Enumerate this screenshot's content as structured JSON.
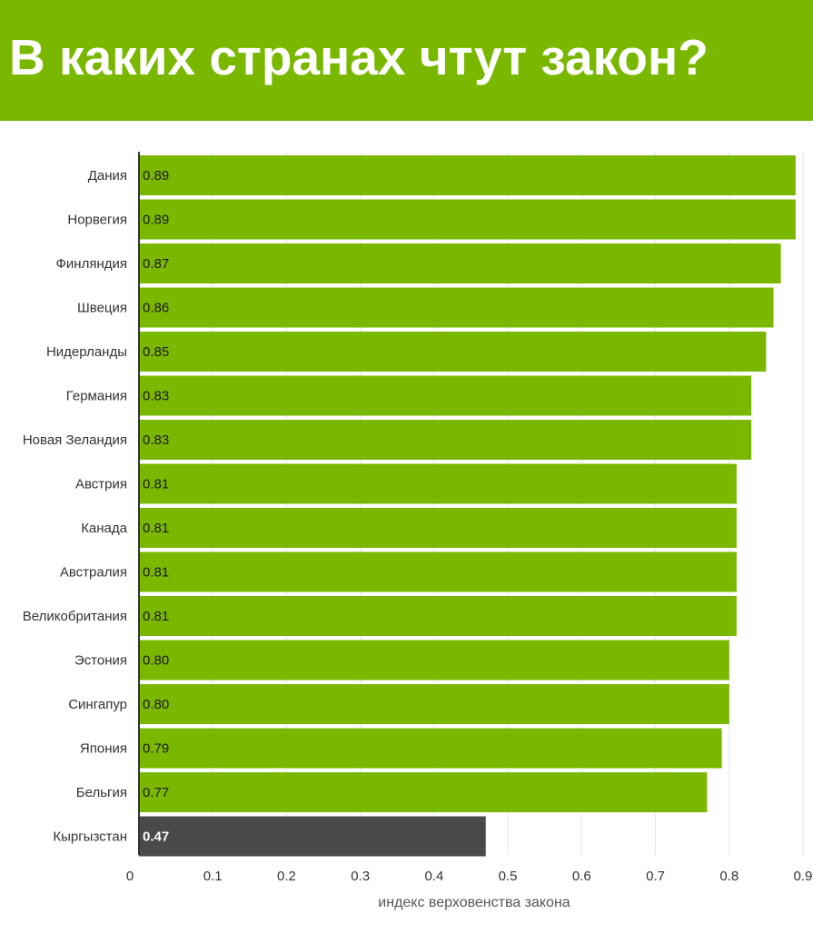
{
  "header": {
    "title": "В каких странах чтут закон?"
  },
  "colors": {
    "header_bg": "#7ab800",
    "bar": "#7ab800",
    "bar_highlight": "#4a4a4a"
  },
  "chart_data": {
    "type": "bar",
    "orientation": "horizontal",
    "categories": [
      "Дания",
      "Норвегия",
      "Финляндия",
      "Швеция",
      "Нидерланды",
      "Германия",
      "Новая Зеландия",
      "Австрия",
      "Канада",
      "Австралия",
      "Великобритания",
      "Эстония",
      "Сингапур",
      "Япония",
      "Бельгия",
      "Кыргызстан"
    ],
    "values": [
      0.89,
      0.89,
      0.87,
      0.86,
      0.85,
      0.83,
      0.83,
      0.81,
      0.81,
      0.81,
      0.81,
      0.8,
      0.8,
      0.79,
      0.77,
      0.47
    ],
    "value_labels": [
      "0.89",
      "0.89",
      "0.87",
      "0.86",
      "0.85",
      "0.83",
      "0.83",
      "0.81",
      "0.81",
      "0.81",
      "0.81",
      "0.80",
      "0.80",
      "0.79",
      "0.77",
      "0.47"
    ],
    "highlight": "Кыргызстан",
    "xlabel": "индекс верховенства закона",
    "ylabel": "",
    "xlim": [
      0,
      0.9
    ],
    "x_ticks": [
      0,
      0.1,
      0.2,
      0.3,
      0.4,
      0.5,
      0.6,
      0.7,
      0.8,
      0.9
    ],
    "x_tick_labels": [
      "0",
      "0.1",
      "0.2",
      "0.3",
      "0.4",
      "0.5",
      "0.6",
      "0.7",
      "0.8",
      "0.9"
    ],
    "grid": true
  }
}
